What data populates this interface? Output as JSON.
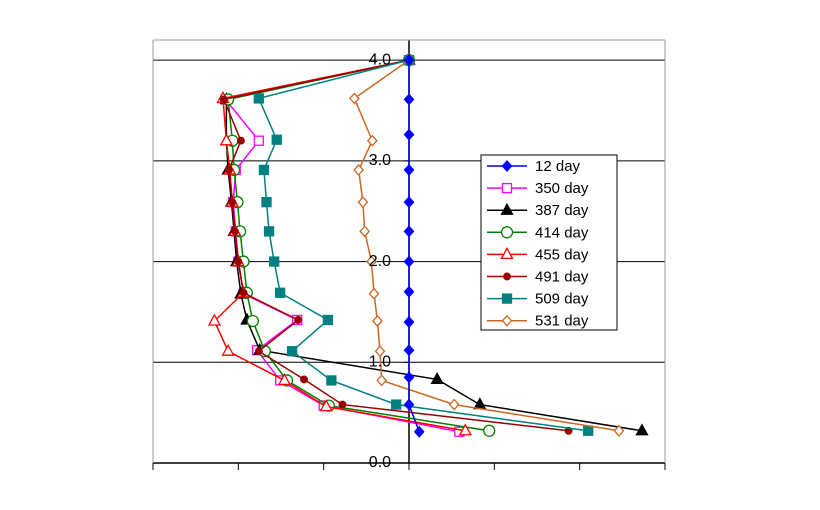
{
  "chart_data": {
    "type": "line",
    "xlim": [
      -3,
      3
    ],
    "xticks": [
      -3,
      -2,
      -1,
      0,
      1,
      2,
      3
    ],
    "ylim": [
      0,
      4.2
    ],
    "yticks": [
      {
        "value": 0,
        "label": "0.0"
      },
      {
        "value": 1,
        "label": "1.0"
      },
      {
        "value": 2,
        "label": "2.0"
      },
      {
        "value": 3,
        "label": "3.0"
      },
      {
        "value": 4,
        "label": "4.0"
      }
    ],
    "grid": true,
    "series": [
      {
        "name": "12 day",
        "color": "#0000ff",
        "marker": "diamond",
        "filled": true,
        "x": [
          0,
          0,
          0,
          0,
          0,
          0,
          0,
          0,
          0,
          0,
          0,
          0,
          0.12
        ],
        "y": [
          4.0,
          3.61,
          3.26,
          2.91,
          2.59,
          2.3,
          2.0,
          1.7,
          1.4,
          1.12,
          0.85,
          0.58,
          0.31
        ]
      },
      {
        "name": "350 day",
        "color": "#ff00ff",
        "marker": "square",
        "filled": false,
        "x": [
          0,
          -2.15,
          -1.76,
          -2.03,
          -2.06,
          -2.03,
          -2.0,
          -1.94,
          -1.31,
          -1.78,
          -1.51,
          -1.0,
          0.59
        ],
        "y": [
          4.0,
          3.61,
          3.2,
          2.91,
          2.59,
          2.3,
          2.0,
          1.68,
          1.42,
          1.12,
          0.82,
          0.57,
          0.31
        ]
      },
      {
        "name": "387 day",
        "color": "#000000",
        "marker": "triangle",
        "filled": true,
        "x": [
          0,
          -2.14,
          -2.14,
          -2.12,
          -2.08,
          -2.05,
          -2.02,
          -1.97,
          -1.9,
          -1.75,
          0.33,
          0.83,
          2.73
        ],
        "y": [
          4.0,
          3.61,
          3.2,
          2.91,
          2.59,
          2.3,
          2.0,
          1.68,
          1.42,
          1.12,
          0.83,
          0.58,
          0.32
        ]
      },
      {
        "name": "414 day",
        "color": "#008000",
        "marker": "circle",
        "filled": false,
        "x": [
          0,
          -2.12,
          -2.07,
          -2.05,
          -2.01,
          -1.98,
          -1.94,
          -1.9,
          -1.83,
          -1.69,
          -1.43,
          -0.94,
          0.94
        ],
        "y": [
          4.0,
          3.61,
          3.2,
          2.91,
          2.59,
          2.3,
          2.0,
          1.69,
          1.41,
          1.11,
          0.82,
          0.57,
          0.32
        ]
      },
      {
        "name": "455 day",
        "color": "#ff0000",
        "marker": "triangle",
        "filled": false,
        "x": [
          0,
          -2.18,
          -2.14,
          -2.1,
          -2.07,
          -2.04,
          -2.0,
          -1.94,
          -2.28,
          -2.12,
          -1.46,
          -0.97,
          0.66
        ],
        "y": [
          4.0,
          3.62,
          3.2,
          2.91,
          2.59,
          2.3,
          2.0,
          1.69,
          1.41,
          1.11,
          0.82,
          0.56,
          0.32
        ]
      },
      {
        "name": "491 day",
        "color": "#990000",
        "marker": "dot",
        "filled": true,
        "x": [
          0,
          -2.17,
          -1.97,
          -2.11,
          -2.07,
          -2.04,
          -2.0,
          -1.94,
          -1.3,
          -1.76,
          -1.23,
          -0.78,
          1.87
        ],
        "y": [
          4.0,
          3.61,
          3.2,
          2.91,
          2.59,
          2.3,
          2.0,
          1.69,
          1.42,
          1.11,
          0.83,
          0.58,
          0.32
        ]
      },
      {
        "name": "509 day",
        "color": "#008080",
        "marker": "square",
        "filled": true,
        "x": [
          0,
          -1.76,
          -1.55,
          -1.7,
          -1.67,
          -1.64,
          -1.58,
          -1.51,
          -0.95,
          -1.37,
          -0.91,
          -0.15,
          2.1
        ],
        "y": [
          4.0,
          3.62,
          3.21,
          2.91,
          2.59,
          2.3,
          2.0,
          1.69,
          1.42,
          1.11,
          0.82,
          0.58,
          0.32
        ]
      },
      {
        "name": "531 day",
        "color": "#cc6622",
        "marker": "diamond",
        "filled": false,
        "x": [
          0,
          -0.64,
          -0.43,
          -0.59,
          -0.54,
          -0.52,
          -0.44,
          -0.41,
          -0.37,
          -0.34,
          -0.32,
          0.53,
          2.46
        ],
        "y": [
          4.0,
          3.62,
          3.2,
          2.91,
          2.59,
          2.3,
          2.0,
          1.68,
          1.41,
          1.11,
          0.82,
          0.58,
          0.32
        ]
      }
    ]
  }
}
